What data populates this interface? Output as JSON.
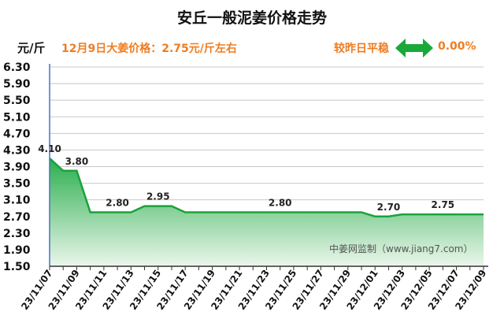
{
  "title": "安丘一般泥姜价格走势",
  "header": {
    "unit": "元/斤",
    "price_text": "12月9日大姜价格：2.75元/斤左右",
    "compare_text": "较昨日平稳",
    "change_pct": "0.00%",
    "arrow_icon": "double-arrow-icon",
    "arrow_color": "#19a83a"
  },
  "watermark": "中姜网监制（www.jiang7.com）",
  "colors": {
    "line": "#1aa23a",
    "fill_top": "#1faa45",
    "fill_bottom": "#e6f5e6",
    "axis": "#4472c4",
    "grid": "#c8c8c8"
  },
  "chart_data": {
    "type": "area",
    "title": "安丘一般泥姜价格走势",
    "ylabel": "元/斤",
    "ylim": [
      1.5,
      6.3
    ],
    "yticks": [
      "6.30",
      "5.90",
      "5.50",
      "5.10",
      "4.70",
      "4.30",
      "3.90",
      "3.50",
      "3.10",
      "2.70",
      "2.30",
      "1.90",
      "1.50"
    ],
    "x": [
      "23/11/07",
      "23/11/08",
      "23/11/09",
      "23/11/10",
      "23/11/11",
      "23/11/12",
      "23/11/13",
      "23/11/14",
      "23/11/15",
      "23/11/16",
      "23/11/17",
      "23/11/18",
      "23/11/19",
      "23/11/20",
      "23/11/21",
      "23/11/22",
      "23/11/23",
      "23/11/24",
      "23/11/25",
      "23/11/26",
      "23/11/27",
      "23/11/28",
      "23/11/29",
      "23/11/30",
      "23/12/01",
      "23/12/02",
      "23/12/03",
      "23/12/04",
      "23/12/05",
      "23/12/06",
      "23/12/07",
      "23/12/08",
      "23/12/09"
    ],
    "xtick_labels": [
      "23/11/07",
      "23/11/09",
      "23/11/11",
      "23/11/13",
      "23/11/15",
      "23/11/17",
      "23/11/19",
      "23/11/21",
      "23/11/23",
      "23/11/25",
      "23/11/27",
      "23/11/29",
      "23/12/01",
      "23/12/03",
      "23/12/05",
      "23/12/07",
      "23/12/09"
    ],
    "values": [
      4.1,
      3.8,
      3.8,
      2.8,
      2.8,
      2.8,
      2.8,
      2.95,
      2.95,
      2.95,
      2.8,
      2.8,
      2.8,
      2.8,
      2.8,
      2.8,
      2.8,
      2.8,
      2.8,
      2.8,
      2.8,
      2.8,
      2.8,
      2.8,
      2.7,
      2.7,
      2.75,
      2.75,
      2.75,
      2.75,
      2.75,
      2.75,
      2.75
    ],
    "data_labels": [
      {
        "index": 0,
        "text": "4.10"
      },
      {
        "index": 2,
        "text": "3.80"
      },
      {
        "index": 5,
        "text": "2.80"
      },
      {
        "index": 8,
        "text": "2.95"
      },
      {
        "index": 17,
        "text": "2.80"
      },
      {
        "index": 25,
        "text": "2.70"
      },
      {
        "index": 29,
        "text": "2.75"
      }
    ],
    "grid": "horizontal"
  }
}
